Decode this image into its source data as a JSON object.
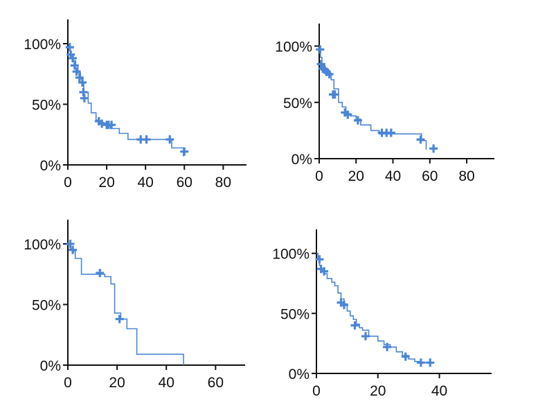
{
  "chart_data": [
    {
      "type": "line",
      "title": "",
      "xlabel": "",
      "ylabel": "",
      "xlim": [
        0,
        92
      ],
      "ylim": [
        0,
        1.2
      ],
      "x_ticks": [
        0,
        20,
        40,
        60,
        80
      ],
      "x_tick_labels": [
        "0",
        "20",
        "40",
        "60",
        "80"
      ],
      "y_ticks": [
        0,
        0.5,
        1
      ],
      "y_tick_labels": [
        "0%",
        "50%",
        "100%"
      ],
      "grid": false,
      "color": "#4a86d6",
      "series": [
        {
          "step_x": [
            0,
            1.2,
            2.4,
            4,
            5.2,
            6.5,
            7.2,
            8.2,
            10.5,
            12,
            14.5,
            16,
            18.5,
            20.5,
            22,
            26.5,
            31,
            36.5,
            41,
            53.5,
            59.5
          ],
          "survival": [
            1,
            0.91,
            0.86,
            0.82,
            0.76,
            0.71,
            0.68,
            0.6,
            0.51,
            0.43,
            0.37,
            0.35,
            0.33,
            0.32,
            0.3,
            0.26,
            0.21,
            0.21,
            0.21,
            0.14,
            0.07
          ],
          "censor_x": [
            1,
            1.5,
            2.5,
            3.5,
            4.5,
            6,
            7.5,
            8,
            8.5,
            16,
            17.5,
            20,
            21,
            22.5,
            37.5,
            40.5,
            52.5,
            60
          ],
          "censor_y": [
            0.97,
            0.91,
            0.88,
            0.82,
            0.77,
            0.72,
            0.68,
            0.6,
            0.55,
            0.36,
            0.34,
            0.33,
            0.33,
            0.33,
            0.21,
            0.21,
            0.21,
            0.11
          ]
        }
      ]
    },
    {
      "type": "line",
      "title": "",
      "xlabel": "",
      "ylabel": "",
      "xlim": [
        0,
        95
      ],
      "ylim": [
        0,
        1.2
      ],
      "x_ticks": [
        0,
        20,
        40,
        60,
        80
      ],
      "x_tick_labels": [
        "0",
        "20",
        "40",
        "60",
        "80"
      ],
      "y_ticks": [
        0,
        0.5,
        1
      ],
      "y_tick_labels": [
        "0%",
        "50%",
        "100%"
      ],
      "grid": false,
      "color": "#4a86d6",
      "series": [
        {
          "step_x": [
            0,
            0.7,
            1.5,
            3,
            4.5,
            6.5,
            8,
            10.5,
            12.5,
            14.5,
            17,
            20,
            22.5,
            28,
            32.5,
            44,
            55.5,
            58
          ],
          "survival": [
            1,
            0.9,
            0.84,
            0.8,
            0.76,
            0.7,
            0.62,
            0.5,
            0.46,
            0.4,
            0.38,
            0.35,
            0.3,
            0.25,
            0.22,
            0.22,
            0.16,
            0.08
          ],
          "censor_x": [
            0.5,
            1,
            2,
            3,
            4,
            5.5,
            7.5,
            8.5,
            14,
            15.5,
            21,
            34,
            36.5,
            39,
            55,
            62
          ],
          "censor_y": [
            0.97,
            0.84,
            0.8,
            0.79,
            0.77,
            0.75,
            0.57,
            0.57,
            0.41,
            0.39,
            0.34,
            0.23,
            0.23,
            0.23,
            0.17,
            0.09
          ]
        }
      ]
    },
    {
      "type": "line",
      "title": "",
      "xlabel": "",
      "ylabel": "",
      "xlim": [
        0,
        72
      ],
      "ylim": [
        0,
        1.2
      ],
      "x_ticks": [
        0,
        20,
        40,
        60
      ],
      "x_tick_labels": [
        "0",
        "20",
        "40",
        "60"
      ],
      "y_ticks": [
        0,
        0.5,
        1
      ],
      "y_tick_labels": [
        "0%",
        "50%",
        "100%"
      ],
      "grid": false,
      "color": "#4a86d6",
      "series": [
        {
          "step_x": [
            0,
            1,
            2.2,
            3,
            5.5,
            15,
            17.5,
            19,
            21.5,
            24,
            28,
            47
          ],
          "survival": [
            1,
            0.96,
            0.94,
            0.88,
            0.75,
            0.73,
            0.67,
            0.43,
            0.38,
            0.3,
            0.09,
            0
          ],
          "censor_x": [
            1,
            2,
            13,
            21
          ],
          "censor_y": [
            1,
            0.95,
            0.76,
            0.38
          ]
        }
      ]
    },
    {
      "type": "line",
      "title": "",
      "xlabel": "",
      "ylabel": "",
      "xlim": [
        0,
        57
      ],
      "ylim": [
        0,
        1.2
      ],
      "x_ticks": [
        0,
        20,
        40
      ],
      "x_tick_labels": [
        "0",
        "20",
        "40"
      ],
      "y_ticks": [
        0,
        0.5,
        1
      ],
      "y_tick_labels": [
        "0%",
        "50%",
        "100%"
      ],
      "grid": false,
      "color": "#4a86d6",
      "series": [
        {
          "step_x": [
            0,
            0.5,
            1,
            1.5,
            2.5,
            3.5,
            5,
            6,
            7,
            8,
            9,
            10,
            11,
            12,
            13,
            14,
            15,
            17,
            20,
            22,
            24,
            26,
            28,
            30,
            32,
            34,
            37
          ],
          "survival": [
            1,
            0.95,
            0.9,
            0.85,
            0.83,
            0.79,
            0.76,
            0.73,
            0.67,
            0.62,
            0.58,
            0.52,
            0.48,
            0.45,
            0.41,
            0.38,
            0.36,
            0.31,
            0.27,
            0.24,
            0.22,
            0.18,
            0.15,
            0.12,
            0.1,
            0.09,
            0.09
          ],
          "censor_x": [
            1,
            1.5,
            2.5,
            8,
            9,
            12.5,
            16,
            23,
            29,
            34,
            37
          ],
          "censor_y": [
            0.95,
            0.87,
            0.85,
            0.59,
            0.57,
            0.4,
            0.31,
            0.22,
            0.14,
            0.09,
            0.09
          ]
        }
      ]
    }
  ]
}
